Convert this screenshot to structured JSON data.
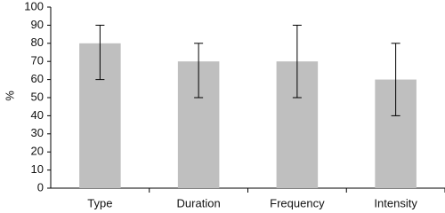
{
  "chart_data": {
    "type": "bar",
    "y_label": "%",
    "categories": [
      "Type",
      "Duration",
      "Frequency",
      "Intensity"
    ],
    "values": [
      80,
      70,
      70,
      60
    ],
    "error_lower": [
      20,
      20,
      20,
      20
    ],
    "error_upper": [
      10,
      10,
      20,
      20
    ],
    "color": "#bfbfbf",
    "ylim": [
      0,
      100
    ],
    "yticks": [
      0,
      10,
      20,
      30,
      40,
      50,
      60,
      70,
      80,
      90,
      100
    ],
    "grid": false
  }
}
